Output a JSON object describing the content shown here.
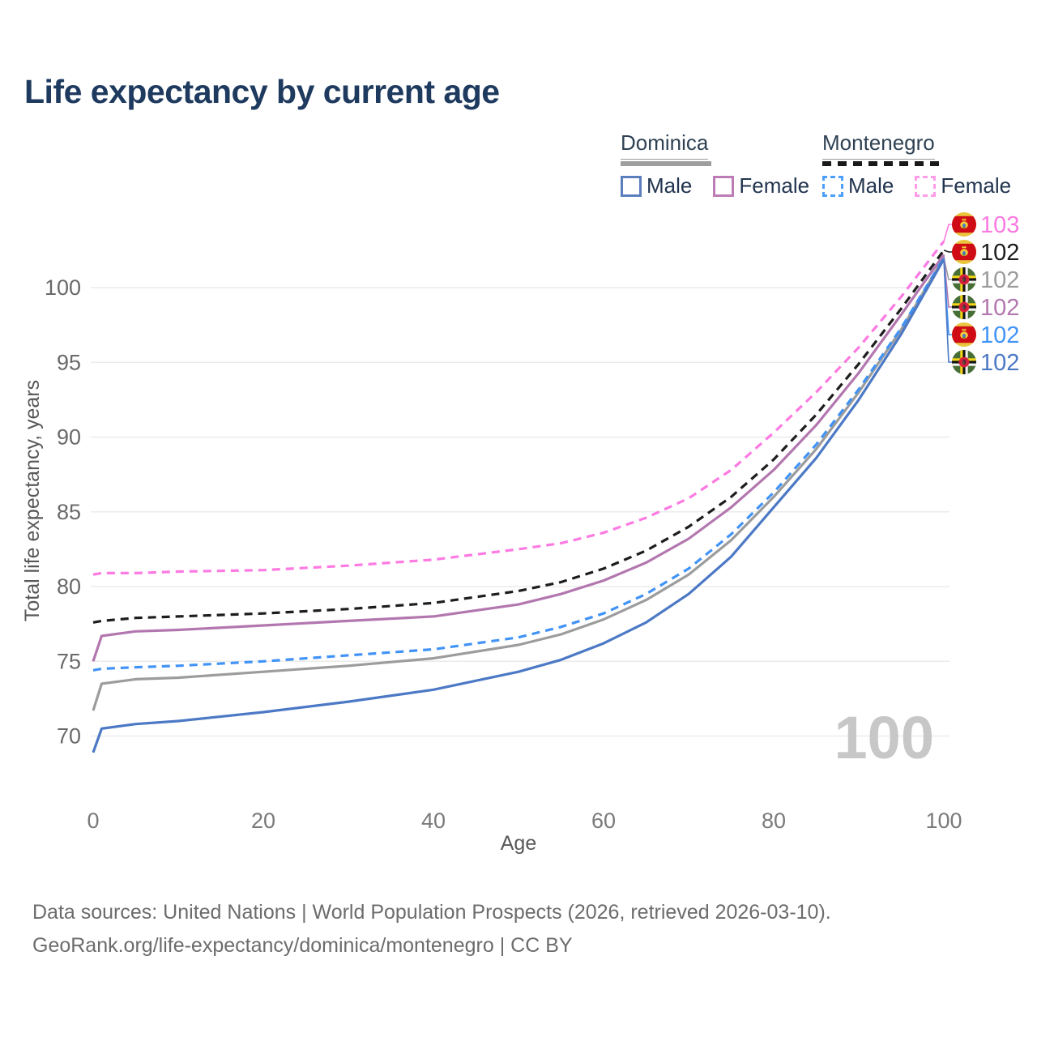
{
  "title": "Life expectancy by current age",
  "legend": {
    "groups": [
      {
        "country": "Dominica",
        "line_style": "solid",
        "line_color": "#9e9e9e",
        "items": [
          {
            "label": "Male",
            "color": "#5b7fbd",
            "dash": "solid"
          },
          {
            "label": "Female",
            "color": "#bd7cb5",
            "dash": "solid"
          }
        ]
      },
      {
        "country": "Montenegro",
        "line_style": "dashed",
        "line_color": "#191919",
        "items": [
          {
            "label": "Male",
            "color": "#4b9ffb",
            "dash": "dashed"
          },
          {
            "label": "Female",
            "color": "#fe9be9",
            "dash": "dashed"
          }
        ]
      }
    ]
  },
  "chart_data": {
    "type": "line",
    "xlabel": "Age",
    "ylabel": "Total life expectancy, years",
    "xlim": [
      0,
      100
    ],
    "ylim": [
      67,
      104.5
    ],
    "xticks": [
      0,
      20,
      40,
      60,
      80,
      100
    ],
    "yticks": [
      70,
      75,
      80,
      85,
      90,
      95,
      100
    ],
    "grid": "horizontal",
    "legend_position": "top-right",
    "series": [
      {
        "id": "mne_female",
        "name": "Montenegro Female",
        "country": "Montenegro",
        "sex": "Female",
        "color": "#fc7ae2",
        "dash": "dashed",
        "flag": "montenegro-flag",
        "end_label": "103",
        "points": [
          [
            0,
            80.8
          ],
          [
            1,
            80.9
          ],
          [
            5,
            80.9
          ],
          [
            10,
            81.0
          ],
          [
            20,
            81.1
          ],
          [
            30,
            81.4
          ],
          [
            40,
            81.8
          ],
          [
            50,
            82.5
          ],
          [
            55,
            82.9
          ],
          [
            60,
            83.6
          ],
          [
            65,
            84.6
          ],
          [
            70,
            85.9
          ],
          [
            75,
            87.8
          ],
          [
            80,
            90.3
          ],
          [
            85,
            93.0
          ],
          [
            90,
            96.0
          ],
          [
            95,
            99.4
          ],
          [
            100,
            103.1
          ]
        ]
      },
      {
        "id": "mne_total",
        "name": "Montenegro Both sexes",
        "country": "Montenegro",
        "sex": "Both",
        "color": "#1d1d1d",
        "dash": "dashed",
        "flag": "montenegro-flag",
        "end_label": "102",
        "points": [
          [
            0,
            77.6
          ],
          [
            1,
            77.7
          ],
          [
            5,
            77.9
          ],
          [
            10,
            78.0
          ],
          [
            20,
            78.2
          ],
          [
            30,
            78.5
          ],
          [
            40,
            78.9
          ],
          [
            50,
            79.7
          ],
          [
            55,
            80.3
          ],
          [
            60,
            81.2
          ],
          [
            65,
            82.4
          ],
          [
            70,
            84.0
          ],
          [
            75,
            86.0
          ],
          [
            80,
            88.5
          ],
          [
            85,
            91.5
          ],
          [
            90,
            94.9
          ],
          [
            95,
            98.6
          ],
          [
            100,
            102.5
          ]
        ]
      },
      {
        "id": "dma_total",
        "name": "Dominica Both sexes",
        "country": "Dominica",
        "sex": "Both",
        "color": "#9c9c9c",
        "dash": "solid",
        "flag": "dominica-flag",
        "end_label": "102",
        "points": [
          [
            0,
            71.7
          ],
          [
            1,
            73.5
          ],
          [
            5,
            73.8
          ],
          [
            10,
            73.9
          ],
          [
            20,
            74.3
          ],
          [
            30,
            74.7
          ],
          [
            40,
            75.2
          ],
          [
            50,
            76.1
          ],
          [
            55,
            76.8
          ],
          [
            60,
            77.8
          ],
          [
            65,
            79.1
          ],
          [
            70,
            80.8
          ],
          [
            75,
            83.1
          ],
          [
            80,
            86.0
          ],
          [
            85,
            89.2
          ],
          [
            90,
            93.0
          ],
          [
            95,
            97.2
          ],
          [
            100,
            102.0
          ]
        ]
      },
      {
        "id": "dma_female",
        "name": "Dominica Female",
        "country": "Dominica",
        "sex": "Female",
        "color": "#b377af",
        "dash": "solid",
        "flag": "dominica-flag",
        "end_label": "102",
        "points": [
          [
            0,
            75.0
          ],
          [
            1,
            76.7
          ],
          [
            5,
            77.0
          ],
          [
            10,
            77.1
          ],
          [
            20,
            77.4
          ],
          [
            30,
            77.7
          ],
          [
            40,
            78.0
          ],
          [
            50,
            78.8
          ],
          [
            55,
            79.5
          ],
          [
            60,
            80.4
          ],
          [
            65,
            81.6
          ],
          [
            70,
            83.2
          ],
          [
            75,
            85.3
          ],
          [
            80,
            87.8
          ],
          [
            85,
            90.8
          ],
          [
            90,
            94.3
          ],
          [
            95,
            98.2
          ],
          [
            100,
            102.2
          ]
        ]
      },
      {
        "id": "mne_male",
        "name": "Montenegro Male",
        "country": "Montenegro",
        "sex": "Male",
        "color": "#4193f6",
        "dash": "dashed",
        "flag": "montenegro-flag",
        "end_label": "102",
        "points": [
          [
            0,
            74.4
          ],
          [
            1,
            74.5
          ],
          [
            5,
            74.6
          ],
          [
            10,
            74.7
          ],
          [
            20,
            75.0
          ],
          [
            30,
            75.4
          ],
          [
            40,
            75.8
          ],
          [
            50,
            76.6
          ],
          [
            55,
            77.3
          ],
          [
            60,
            78.2
          ],
          [
            65,
            79.5
          ],
          [
            70,
            81.2
          ],
          [
            75,
            83.5
          ],
          [
            80,
            86.3
          ],
          [
            85,
            89.5
          ],
          [
            90,
            93.2
          ],
          [
            95,
            97.3
          ],
          [
            100,
            102.0
          ]
        ]
      },
      {
        "id": "dma_male",
        "name": "Dominica Male",
        "country": "Dominica",
        "sex": "Male",
        "color": "#4c79c5",
        "dash": "solid",
        "flag": "dominica-flag",
        "end_label": "102",
        "points": [
          [
            0,
            68.9
          ],
          [
            1,
            70.5
          ],
          [
            5,
            70.8
          ],
          [
            10,
            71.0
          ],
          [
            20,
            71.6
          ],
          [
            30,
            72.3
          ],
          [
            40,
            73.1
          ],
          [
            50,
            74.3
          ],
          [
            55,
            75.1
          ],
          [
            60,
            76.2
          ],
          [
            65,
            77.6
          ],
          [
            70,
            79.5
          ],
          [
            75,
            82.0
          ],
          [
            80,
            85.3
          ],
          [
            85,
            88.6
          ],
          [
            90,
            92.5
          ],
          [
            95,
            96.9
          ],
          [
            100,
            101.9
          ]
        ]
      }
    ],
    "end_label_order": [
      "mne_female",
      "mne_total",
      "dma_total",
      "dma_female",
      "mne_male",
      "dma_male"
    ]
  },
  "watermark": "100",
  "footer": {
    "line1": "Data sources: United Nations | World Population Prospects (2026, retrieved 2026-03-10).",
    "line2": "GeoRank.org/life-expectancy/dominica/montenegro | CC BY"
  }
}
